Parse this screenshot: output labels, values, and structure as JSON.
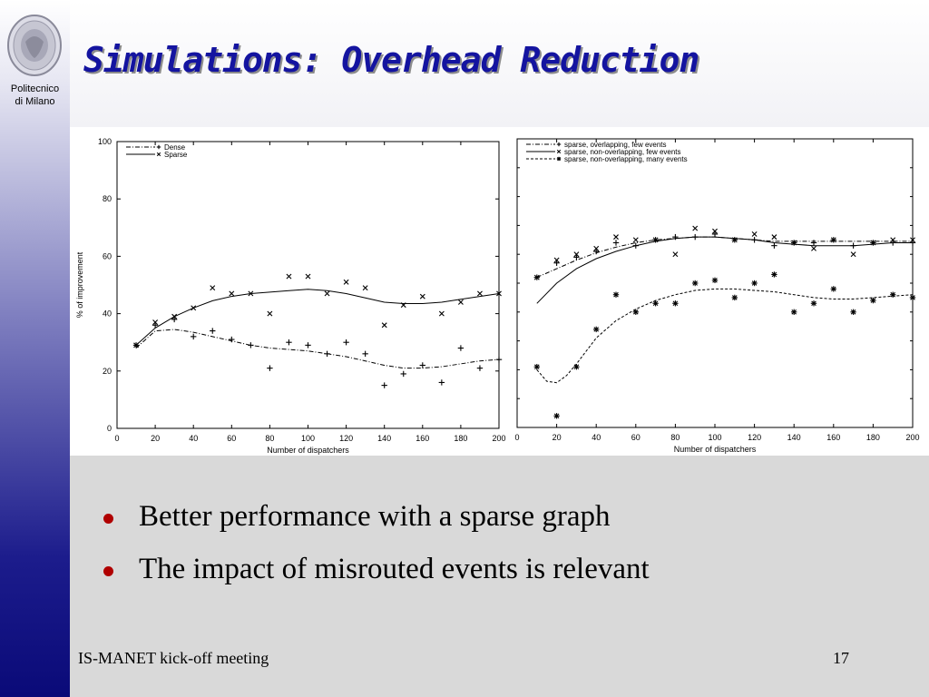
{
  "slide": {
    "title": "Simulations: Overhead Reduction",
    "bullets": [
      "Better performance with a sparse graph",
      "The impact of misrouted events is relevant"
    ],
    "footer_left": "IS-MANET kick-off meeting",
    "page_number": "17"
  },
  "logo": {
    "text": "Politecnico di Milano",
    "line1": "Politecnico",
    "line2": "di Milano"
  },
  "chart_data": [
    {
      "type": "scatter",
      "xlabel": "Number of dispatchers",
      "ylabel": "% of improvement",
      "xlim": [
        0,
        200
      ],
      "ylim": [
        0,
        100
      ],
      "xticks": [
        0,
        20,
        40,
        60,
        80,
        100,
        120,
        140,
        160,
        180,
        200
      ],
      "yticks": [
        0,
        20,
        40,
        60,
        80,
        100
      ],
      "legend_position": "top-left",
      "grid": false,
      "series": [
        {
          "name": "Dense",
          "marker": "+",
          "line_style": "dash-dot",
          "points": [
            [
              10,
              29
            ],
            [
              20,
              36
            ],
            [
              30,
              38
            ],
            [
              40,
              32
            ],
            [
              50,
              34
            ],
            [
              60,
              31
            ],
            [
              70,
              29
            ],
            [
              80,
              21
            ],
            [
              90,
              30
            ],
            [
              100,
              29
            ],
            [
              110,
              26
            ],
            [
              120,
              30
            ],
            [
              130,
              26
            ],
            [
              140,
              15
            ],
            [
              150,
              19
            ],
            [
              160,
              22
            ],
            [
              170,
              16
            ],
            [
              180,
              28
            ],
            [
              190,
              21
            ],
            [
              200,
              24
            ]
          ],
          "fit": [
            [
              10,
              28
            ],
            [
              20,
              34
            ],
            [
              30,
              34.5
            ],
            [
              40,
              33.5
            ],
            [
              50,
              32
            ],
            [
              60,
              30.5
            ],
            [
              70,
              29
            ],
            [
              80,
              28
            ],
            [
              90,
              27.5
            ],
            [
              100,
              27
            ],
            [
              110,
              26
            ],
            [
              120,
              25
            ],
            [
              130,
              23.5
            ],
            [
              140,
              22
            ],
            [
              150,
              21
            ],
            [
              160,
              21
            ],
            [
              170,
              21.5
            ],
            [
              180,
              22.5
            ],
            [
              190,
              23.5
            ],
            [
              200,
              24
            ]
          ]
        },
        {
          "name": "Sparse",
          "marker": "x",
          "line_style": "solid",
          "points": [
            [
              10,
              29
            ],
            [
              20,
              37
            ],
            [
              30,
              39
            ],
            [
              40,
              42
            ],
            [
              50,
              49
            ],
            [
              60,
              47
            ],
            [
              70,
              47
            ],
            [
              80,
              40
            ],
            [
              90,
              53
            ],
            [
              100,
              53
            ],
            [
              110,
              47
            ],
            [
              120,
              51
            ],
            [
              130,
              49
            ],
            [
              140,
              36
            ],
            [
              150,
              43
            ],
            [
              160,
              46
            ],
            [
              170,
              40
            ],
            [
              180,
              44
            ],
            [
              190,
              47
            ],
            [
              200,
              47
            ]
          ],
          "fit": [
            [
              10,
              29
            ],
            [
              20,
              35
            ],
            [
              30,
              39
            ],
            [
              40,
              42
            ],
            [
              50,
              44.5
            ],
            [
              60,
              46
            ],
            [
              70,
              47
            ],
            [
              80,
              47.5
            ],
            [
              90,
              48
            ],
            [
              100,
              48.5
            ],
            [
              110,
              48
            ],
            [
              120,
              47
            ],
            [
              130,
              45.5
            ],
            [
              140,
              44
            ],
            [
              150,
              43.5
            ],
            [
              160,
              43.5
            ],
            [
              170,
              44
            ],
            [
              180,
              45
            ],
            [
              190,
              46
            ],
            [
              200,
              47
            ]
          ]
        }
      ]
    },
    {
      "type": "scatter",
      "xlabel": "Number of dispatchers",
      "xlim": [
        0,
        200
      ],
      "ylim": [
        0,
        100
      ],
      "xticks": [
        0,
        20,
        40,
        60,
        80,
        100,
        120,
        140,
        160,
        180,
        200
      ],
      "legend_position": "top-left",
      "grid": false,
      "series": [
        {
          "name": "sparse, overlapping, few events",
          "marker": "+",
          "line_style": "dash-dot",
          "points": [
            [
              10,
              52
            ],
            [
              20,
              57
            ],
            [
              30,
              59
            ],
            [
              40,
              61
            ],
            [
              50,
              64
            ],
            [
              60,
              63
            ],
            [
              70,
              65
            ],
            [
              80,
              66
            ],
            [
              90,
              66
            ],
            [
              100,
              67
            ],
            [
              110,
              65
            ],
            [
              120,
              65
            ],
            [
              130,
              63
            ],
            [
              140,
              64
            ],
            [
              150,
              64
            ],
            [
              160,
              65
            ],
            [
              170,
              63
            ],
            [
              180,
              64
            ],
            [
              190,
              64
            ],
            [
              200,
              64
            ]
          ],
          "fit": [
            [
              10,
              52
            ],
            [
              20,
              55
            ],
            [
              30,
              58
            ],
            [
              40,
              60.5
            ],
            [
              50,
              62.5
            ],
            [
              60,
              64
            ],
            [
              70,
              65
            ],
            [
              80,
              65.5
            ],
            [
              90,
              66
            ],
            [
              100,
              66
            ],
            [
              110,
              65.5
            ],
            [
              120,
              65
            ],
            [
              130,
              64.5
            ],
            [
              140,
              64.5
            ],
            [
              150,
              64.5
            ],
            [
              160,
              64.5
            ],
            [
              170,
              64.5
            ],
            [
              180,
              64.5
            ],
            [
              190,
              64.5
            ],
            [
              200,
              64.5
            ]
          ]
        },
        {
          "name": "sparse, non-overlapping, few events",
          "marker": "x",
          "line_style": "solid",
          "points": [
            [
              10,
              52
            ],
            [
              20,
              58
            ],
            [
              30,
              60
            ],
            [
              40,
              62
            ],
            [
              50,
              66
            ],
            [
              60,
              65
            ],
            [
              70,
              65
            ],
            [
              80,
              60
            ],
            [
              90,
              69
            ],
            [
              100,
              68
            ],
            [
              110,
              65
            ],
            [
              120,
              67
            ],
            [
              130,
              66
            ],
            [
              140,
              64
            ],
            [
              150,
              62
            ],
            [
              160,
              65
            ],
            [
              170,
              60
            ],
            [
              180,
              64
            ],
            [
              190,
              65
            ],
            [
              200,
              65
            ]
          ],
          "fit": [
            [
              10,
              43
            ],
            [
              20,
              50
            ],
            [
              30,
              55
            ],
            [
              40,
              58.5
            ],
            [
              50,
              61
            ],
            [
              60,
              63
            ],
            [
              70,
              64.5
            ],
            [
              80,
              65.5
            ],
            [
              90,
              66
            ],
            [
              100,
              66
            ],
            [
              110,
              65.5
            ],
            [
              120,
              65
            ],
            [
              130,
              64
            ],
            [
              140,
              63.5
            ],
            [
              150,
              63
            ],
            [
              160,
              63
            ],
            [
              170,
              63
            ],
            [
              180,
              63.5
            ],
            [
              190,
              64
            ],
            [
              200,
              64
            ]
          ]
        },
        {
          "name": "sparse, non-overlapping, many events",
          "marker": "*",
          "line_style": "dashed",
          "points": [
            [
              10,
              21
            ],
            [
              20,
              4
            ],
            [
              30,
              21
            ],
            [
              40,
              34
            ],
            [
              50,
              46
            ],
            [
              60,
              40
            ],
            [
              70,
              43
            ],
            [
              80,
              43
            ],
            [
              90,
              50
            ],
            [
              100,
              51
            ],
            [
              110,
              45
            ],
            [
              120,
              50
            ],
            [
              130,
              53
            ],
            [
              140,
              40
            ],
            [
              150,
              43
            ],
            [
              160,
              48
            ],
            [
              170,
              40
            ],
            [
              180,
              44
            ],
            [
              190,
              46
            ],
            [
              200,
              45
            ]
          ],
          "fit": [
            [
              10,
              20
            ],
            [
              15,
              16
            ],
            [
              20,
              15.5
            ],
            [
              25,
              18
            ],
            [
              30,
              22
            ],
            [
              40,
              31
            ],
            [
              50,
              37
            ],
            [
              60,
              41
            ],
            [
              70,
              44
            ],
            [
              80,
              46
            ],
            [
              90,
              47.5
            ],
            [
              100,
              48
            ],
            [
              110,
              48
            ],
            [
              120,
              47.5
            ],
            [
              130,
              47
            ],
            [
              140,
              46
            ],
            [
              150,
              45
            ],
            [
              160,
              44.5
            ],
            [
              170,
              44.5
            ],
            [
              180,
              45
            ],
            [
              190,
              45.5
            ],
            [
              200,
              46
            ]
          ]
        }
      ]
    }
  ]
}
